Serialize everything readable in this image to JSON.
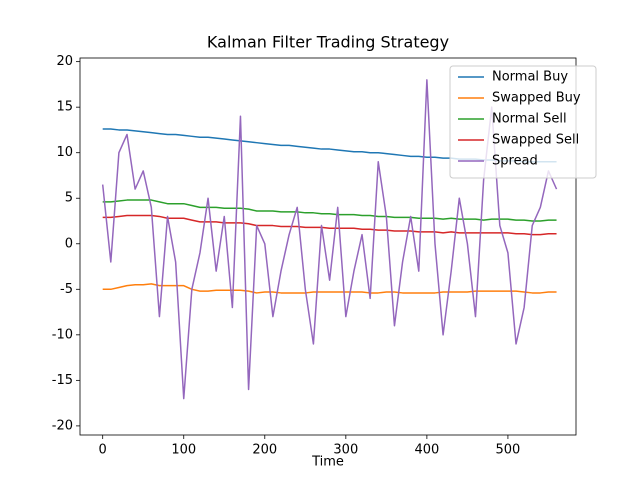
{
  "chart_data": {
    "type": "line",
    "title": "Kalman Filter Trading Strategy",
    "xlabel": "Time",
    "x": [
      0,
      10,
      20,
      30,
      40,
      50,
      60,
      70,
      80,
      90,
      100,
      110,
      120,
      130,
      140,
      150,
      160,
      170,
      180,
      190,
      200,
      210,
      220,
      230,
      240,
      250,
      260,
      270,
      280,
      290,
      300,
      310,
      320,
      330,
      340,
      350,
      360,
      370,
      380,
      390,
      400,
      410,
      420,
      430,
      440,
      450,
      460,
      470,
      480,
      490,
      500,
      510,
      520,
      530,
      540,
      550,
      560
    ],
    "xlim": [
      -28,
      584
    ],
    "xticks": [
      0,
      100,
      200,
      300,
      400,
      500
    ],
    "ylim": [
      -21,
      20.4
    ],
    "yticks": [
      -20,
      -15,
      -10,
      -5,
      0,
      5,
      10,
      15,
      20
    ],
    "grid": false,
    "legend": "upper right",
    "series": [
      {
        "name": "Normal Buy",
        "color": "#1f77b4",
        "values": [
          12.6,
          12.6,
          12.5,
          12.5,
          12.4,
          12.3,
          12.2,
          12.1,
          12.0,
          12.0,
          11.9,
          11.8,
          11.7,
          11.7,
          11.6,
          11.5,
          11.4,
          11.3,
          11.2,
          11.1,
          11.0,
          10.9,
          10.8,
          10.8,
          10.7,
          10.6,
          10.5,
          10.4,
          10.4,
          10.3,
          10.2,
          10.1,
          10.1,
          10.0,
          10.0,
          9.9,
          9.8,
          9.7,
          9.6,
          9.6,
          9.5,
          9.5,
          9.4,
          9.4,
          9.3,
          9.3,
          9.3,
          9.2,
          9.2,
          9.1,
          9.1,
          9.1,
          9.0,
          9.0,
          9.0,
          9.0,
          9.0
        ]
      },
      {
        "name": "Swapped Buy",
        "color": "#ff7f0e",
        "values": [
          -5.0,
          -5.0,
          -4.8,
          -4.6,
          -4.5,
          -4.5,
          -4.4,
          -4.6,
          -4.6,
          -4.6,
          -4.6,
          -5.0,
          -5.2,
          -5.2,
          -5.1,
          -5.1,
          -5.1,
          -5.1,
          -5.2,
          -5.4,
          -5.3,
          -5.3,
          -5.4,
          -5.4,
          -5.4,
          -5.4,
          -5.3,
          -5.3,
          -5.3,
          -5.3,
          -5.3,
          -5.3,
          -5.3,
          -5.4,
          -5.4,
          -5.3,
          -5.3,
          -5.4,
          -5.4,
          -5.4,
          -5.4,
          -5.4,
          -5.3,
          -5.3,
          -5.3,
          -5.3,
          -5.2,
          -5.2,
          -5.2,
          -5.2,
          -5.2,
          -5.2,
          -5.3,
          -5.4,
          -5.4,
          -5.3,
          -5.3
        ]
      },
      {
        "name": "Normal Sell",
        "color": "#2ca02c",
        "values": [
          4.6,
          4.6,
          4.7,
          4.8,
          4.8,
          4.8,
          4.8,
          4.6,
          4.4,
          4.4,
          4.4,
          4.2,
          4.0,
          4.0,
          4.0,
          3.9,
          3.9,
          3.9,
          3.8,
          3.6,
          3.6,
          3.6,
          3.5,
          3.5,
          3.5,
          3.4,
          3.4,
          3.3,
          3.3,
          3.2,
          3.2,
          3.2,
          3.1,
          3.1,
          3.0,
          3.0,
          2.9,
          2.9,
          2.9,
          2.8,
          2.8,
          2.8,
          2.7,
          2.8,
          2.7,
          2.7,
          2.7,
          2.6,
          2.7,
          2.7,
          2.7,
          2.6,
          2.6,
          2.5,
          2.5,
          2.6,
          2.6
        ]
      },
      {
        "name": "Swapped Sell",
        "color": "#d62728",
        "values": [
          2.9,
          2.9,
          3.0,
          3.1,
          3.1,
          3.1,
          3.1,
          3.0,
          2.8,
          2.8,
          2.8,
          2.6,
          2.4,
          2.4,
          2.4,
          2.3,
          2.3,
          2.3,
          2.2,
          2.0,
          2.0,
          2.0,
          1.9,
          1.9,
          1.9,
          1.8,
          1.8,
          1.8,
          1.7,
          1.7,
          1.7,
          1.7,
          1.6,
          1.6,
          1.5,
          1.5,
          1.4,
          1.4,
          1.4,
          1.3,
          1.3,
          1.3,
          1.2,
          1.3,
          1.2,
          1.2,
          1.2,
          1.2,
          1.2,
          1.2,
          1.2,
          1.1,
          1.1,
          1.0,
          1.0,
          1.1,
          1.1
        ]
      },
      {
        "name": "Spread",
        "color": "#9467bd",
        "values": [
          6.5,
          -2,
          10,
          12,
          6,
          8,
          4,
          -8,
          3,
          -2,
          -17,
          -5,
          -1,
          5,
          -3,
          3,
          -7,
          14,
          -16,
          2,
          0,
          -8,
          -3,
          1,
          4,
          -5,
          -11,
          2,
          -4,
          4,
          -8,
          -3,
          1,
          -6,
          9,
          3,
          -9,
          -2,
          3,
          -3,
          18,
          0,
          -10,
          -3,
          5,
          0,
          -8,
          7,
          15,
          2,
          -1,
          -11,
          -7,
          2,
          4,
          8,
          6
        ]
      }
    ]
  }
}
